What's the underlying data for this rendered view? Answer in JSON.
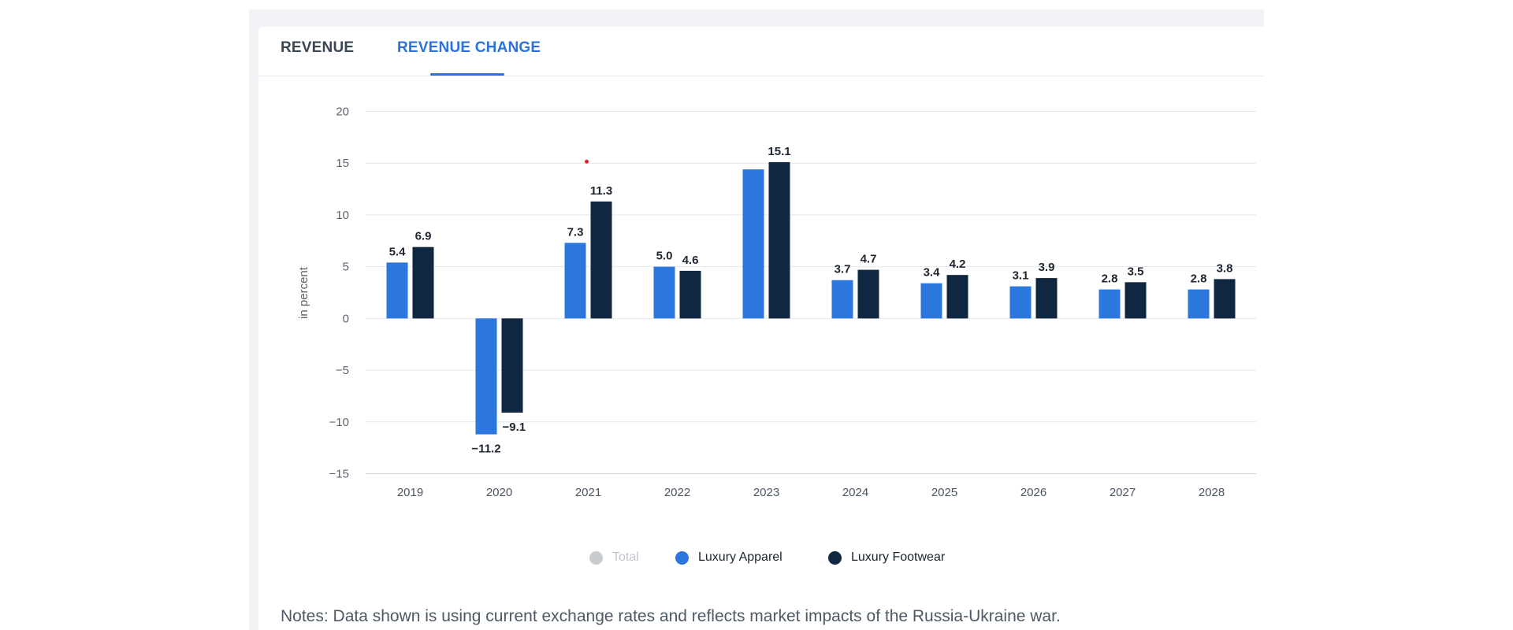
{
  "tabs": [
    {
      "label": "REVENUE",
      "active": false
    },
    {
      "label": "REVENUE CHANGE",
      "active": true
    }
  ],
  "colors": {
    "apparel": "#2b77dd",
    "footwear": "#0f2740",
    "total": "#c9cccf",
    "accent": "#2b73d8",
    "marker": "#e0202a"
  },
  "legend": [
    {
      "label": "Total",
      "color": "#c9cccf",
      "disabled": true
    },
    {
      "label": "Luxury Apparel",
      "color": "#2b77dd",
      "disabled": false
    },
    {
      "label": "Luxury Footwear",
      "color": "#0f2740",
      "disabled": false
    }
  ],
  "notes": "Notes: Data shown is using current exchange rates and reflects market impacts of the Russia-Ukraine war.",
  "chart_data": {
    "type": "bar",
    "title": "",
    "xlabel": "",
    "ylabel": "in percent",
    "ylim": [
      -15,
      20
    ],
    "yticks": [
      20,
      15,
      10,
      5,
      0,
      -5,
      -10,
      -15
    ],
    "ytick_labels": [
      "20",
      "15",
      "10",
      "5",
      "0",
      "−5",
      "−10",
      "−15"
    ],
    "grid": true,
    "legend_position": "bottom-center",
    "categories": [
      "2019",
      "2020",
      "2021",
      "2022",
      "2023",
      "2024",
      "2025",
      "2026",
      "2027",
      "2028"
    ],
    "series": [
      {
        "name": "Luxury Apparel",
        "color": "#2b77dd",
        "values": [
          5.4,
          -11.2,
          7.3,
          5.0,
          14.4,
          3.7,
          3.4,
          3.1,
          2.8,
          2.8
        ],
        "labels": [
          "5.4",
          "−11.2",
          "7.3",
          "5.0",
          "",
          "3.7",
          "3.4",
          "3.1",
          "2.8",
          "2.8"
        ]
      },
      {
        "name": "Luxury Footwear",
        "color": "#0f2740",
        "values": [
          6.9,
          -9.1,
          11.3,
          4.6,
          15.1,
          4.7,
          4.2,
          3.9,
          3.5,
          3.8
        ],
        "labels": [
          "6.9",
          "−9.1",
          "11.3",
          "4.6",
          "15.1",
          "4.7",
          "4.2",
          "3.9",
          "3.5",
          "3.8"
        ]
      }
    ],
    "annotations": [
      {
        "type": "marker",
        "category": "2021",
        "value": 15.0
      }
    ]
  }
}
